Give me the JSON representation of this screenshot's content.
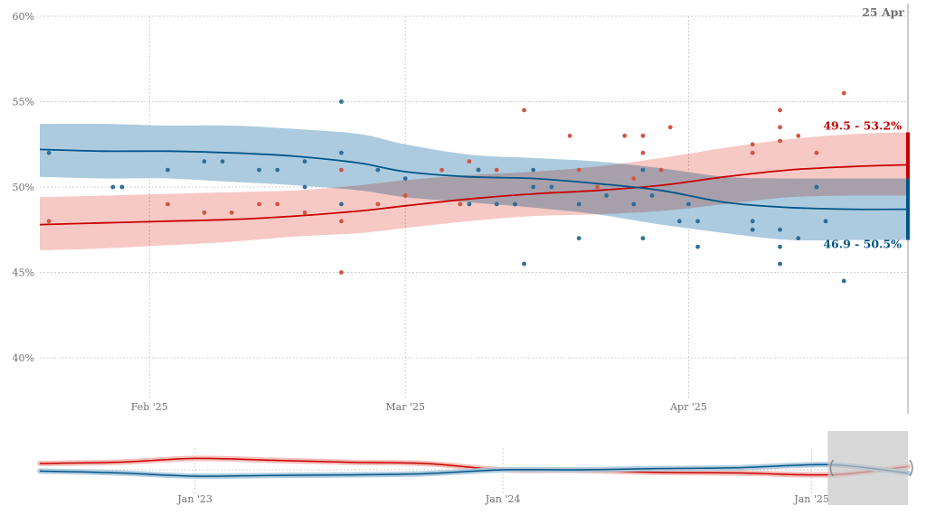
{
  "chart_data": {
    "type": "line",
    "title": "",
    "xlabel": "",
    "ylabel": "",
    "ylim": [
      40,
      60
    ],
    "ytick_labels": [
      "60%",
      "55%",
      "50%",
      "45%",
      "40%"
    ],
    "ytick_values": [
      60,
      55,
      50,
      45,
      40
    ],
    "x_range": [
      "2025-01-20",
      "2025-04-25"
    ],
    "xtick_labels": [
      "Feb '25",
      "Mar '25",
      "Apr '25"
    ],
    "xtick_values": [
      "2025-02-01",
      "2025-03-01",
      "2025-04-01"
    ],
    "current_date_label": "25 Apr",
    "grid": true,
    "legend": "none",
    "colors": {
      "red": "#c70000",
      "red_band": "#f3b7b1",
      "red_point": "#d4553f",
      "blue": "#005689",
      "blue_band": "#a9c8dc",
      "blue_point": "#2d6f99",
      "grid": "#d0d0d0",
      "axis": "#999999"
    },
    "series": [
      {
        "color_key": "red",
        "range_label": "49.5 - 53.2%",
        "trend": {
          "x": [
            "2025-01-20",
            "2025-01-27",
            "2025-02-03",
            "2025-02-10",
            "2025-02-17",
            "2025-02-24",
            "2025-03-01",
            "2025-03-08",
            "2025-03-15",
            "2025-03-22",
            "2025-03-29",
            "2025-04-05",
            "2025-04-12",
            "2025-04-19",
            "2025-04-25"
          ],
          "y": [
            47.8,
            47.9,
            48.0,
            48.1,
            48.3,
            48.6,
            48.9,
            49.3,
            49.6,
            49.8,
            50.1,
            50.6,
            51.0,
            51.2,
            51.3
          ],
          "lower": [
            46.3,
            46.4,
            46.6,
            46.8,
            47.1,
            47.3,
            47.6,
            48.0,
            48.3,
            48.4,
            48.6,
            49.0,
            49.4,
            49.5,
            49.5
          ],
          "upper": [
            49.4,
            49.5,
            49.6,
            49.7,
            49.8,
            50.1,
            50.4,
            50.7,
            50.9,
            51.2,
            51.7,
            52.3,
            52.8,
            53.1,
            53.2
          ]
        },
        "points": [
          [
            "2025-01-21",
            48.0
          ],
          [
            "2025-02-03",
            49.0
          ],
          [
            "2025-02-07",
            48.5
          ],
          [
            "2025-02-10",
            48.5
          ],
          [
            "2025-02-13",
            49.0
          ],
          [
            "2025-02-15",
            49.0
          ],
          [
            "2025-02-18",
            48.5
          ],
          [
            "2025-02-22",
            45.0
          ],
          [
            "2025-02-22",
            48.0
          ],
          [
            "2025-02-22",
            51.0
          ],
          [
            "2025-02-26",
            49.0
          ],
          [
            "2025-03-01",
            49.5
          ],
          [
            "2025-03-05",
            51.0
          ],
          [
            "2025-03-07",
            49.0
          ],
          [
            "2025-03-08",
            51.5
          ],
          [
            "2025-03-09",
            51.0
          ],
          [
            "2025-03-11",
            51.0
          ],
          [
            "2025-03-13",
            49.0
          ],
          [
            "2025-03-14",
            54.5
          ],
          [
            "2025-03-19",
            53.0
          ],
          [
            "2025-03-20",
            51.0
          ],
          [
            "2025-03-22",
            50.0
          ],
          [
            "2025-03-25",
            53.0
          ],
          [
            "2025-03-26",
            50.5
          ],
          [
            "2025-03-27",
            52.0
          ],
          [
            "2025-03-29",
            51.0
          ],
          [
            "2025-03-30",
            53.5
          ],
          [
            "2025-04-30",
            53.5
          ],
          [
            "2025-04-08",
            52.5
          ],
          [
            "2025-04-08",
            52.0
          ],
          [
            "2025-04-11",
            54.5
          ],
          [
            "2025-04-11",
            53.5
          ],
          [
            "2025-04-11",
            52.7
          ],
          [
            "2025-04-13",
            53.0
          ],
          [
            "2025-04-15",
            52.0
          ],
          [
            "2025-04-18",
            55.5
          ],
          [
            "2025-03-27",
            53.0
          ]
        ]
      },
      {
        "color_key": "blue",
        "range_label": "46.9 - 50.5%",
        "trend": {
          "x": [
            "2025-01-20",
            "2025-01-27",
            "2025-02-03",
            "2025-02-10",
            "2025-02-17",
            "2025-02-24",
            "2025-03-01",
            "2025-03-08",
            "2025-03-15",
            "2025-03-22",
            "2025-03-29",
            "2025-04-05",
            "2025-04-12",
            "2025-04-19",
            "2025-04-25"
          ],
          "y": [
            52.2,
            52.1,
            52.1,
            52.0,
            51.8,
            51.4,
            50.9,
            50.6,
            50.5,
            50.2,
            49.8,
            49.1,
            48.8,
            48.7,
            48.7
          ],
          "lower": [
            50.6,
            50.5,
            50.5,
            50.3,
            50.1,
            49.8,
            49.4,
            49.1,
            48.8,
            48.4,
            47.8,
            47.3,
            46.9,
            46.9,
            46.9
          ],
          "upper": [
            53.7,
            53.7,
            53.6,
            53.6,
            53.4,
            53.1,
            52.5,
            51.9,
            51.7,
            51.5,
            51.1,
            50.6,
            50.5,
            50.5,
            50.5
          ]
        },
        "points": [
          [
            "2025-01-21",
            52.0
          ],
          [
            "2025-01-28",
            50.0
          ],
          [
            "2025-01-29",
            50.0
          ],
          [
            "2025-02-03",
            51.0
          ],
          [
            "2025-02-07",
            51.5
          ],
          [
            "2025-02-09",
            51.5
          ],
          [
            "2025-02-13",
            51.0
          ],
          [
            "2025-02-15",
            51.0
          ],
          [
            "2025-02-18",
            51.5
          ],
          [
            "2025-02-18",
            50.0
          ],
          [
            "2025-02-22",
            55.0
          ],
          [
            "2025-02-22",
            52.0
          ],
          [
            "2025-02-22",
            49.0
          ],
          [
            "2025-02-26",
            51.0
          ],
          [
            "2025-03-01",
            50.5
          ],
          [
            "2025-03-08",
            49.0
          ],
          [
            "2025-03-09",
            51.0
          ],
          [
            "2025-03-11",
            49.0
          ],
          [
            "2025-03-13",
            49.0
          ],
          [
            "2025-03-14",
            45.5
          ],
          [
            "2025-03-15",
            50.0
          ],
          [
            "2025-03-17",
            50.0
          ],
          [
            "2025-03-20",
            47.0
          ],
          [
            "2025-03-20",
            49.0
          ],
          [
            "2025-03-23",
            49.5
          ],
          [
            "2025-03-26",
            49.0
          ],
          [
            "2025-03-27",
            51.0
          ],
          [
            "2025-03-27",
            47.0
          ],
          [
            "2025-03-28",
            49.5
          ],
          [
            "2025-03-31",
            48.0
          ],
          [
            "2025-04-01",
            49.0
          ],
          [
            "2025-04-02",
            48.0
          ],
          [
            "2025-04-02",
            46.5
          ],
          [
            "2025-04-08",
            48.0
          ],
          [
            "2025-04-08",
            47.5
          ],
          [
            "2025-04-11",
            47.5
          ],
          [
            "2025-04-11",
            46.5
          ],
          [
            "2025-04-11",
            45.5
          ],
          [
            "2025-04-13",
            47.0
          ],
          [
            "2025-04-15",
            50.0
          ],
          [
            "2025-04-16",
            48.0
          ],
          [
            "2025-04-18",
            44.5
          ],
          [
            "2025-03-15",
            51.0
          ],
          [
            "2025-04-15",
            50.0
          ]
        ]
      }
    ],
    "overview": {
      "x_range": [
        "2022-07-01",
        "2025-04-25"
      ],
      "ylim": [
        40,
        60
      ],
      "xtick_labels": [
        "Jan '23",
        "Jan '24",
        "Jan '25"
      ],
      "xtick_values": [
        "2023-01-01",
        "2024-01-01",
        "2025-01-01"
      ],
      "brush_range": [
        "2025-01-20",
        "2025-04-25"
      ],
      "series": [
        {
          "color_key": "red",
          "x": [
            "2022-07-01",
            "2022-10-01",
            "2023-01-01",
            "2023-04-01",
            "2023-07-01",
            "2023-10-01",
            "2024-01-01",
            "2024-04-01",
            "2024-07-01",
            "2024-10-01",
            "2025-01-01",
            "2025-02-15",
            "2025-04-25"
          ],
          "y": [
            52.5,
            53.0,
            54.5,
            53.8,
            53.0,
            52.5,
            50.0,
            49.8,
            49.0,
            48.8,
            48.0,
            48.5,
            51.3
          ]
        },
        {
          "color_key": "blue",
          "x": [
            "2022-07-01",
            "2022-10-01",
            "2023-01-01",
            "2023-04-01",
            "2023-07-01",
            "2023-10-01",
            "2024-01-01",
            "2024-04-01",
            "2024-07-01",
            "2024-10-01",
            "2025-01-01",
            "2025-02-15",
            "2025-04-25"
          ],
          "y": [
            49.5,
            48.8,
            47.5,
            47.8,
            48.0,
            48.5,
            50.0,
            50.0,
            50.5,
            50.8,
            52.0,
            51.5,
            48.7
          ]
        }
      ]
    }
  }
}
